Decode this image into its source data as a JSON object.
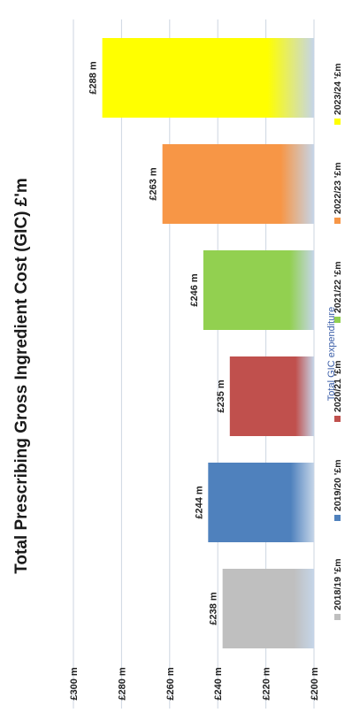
{
  "chart_data": {
    "type": "bar",
    "title": "Total Prescribing Gross Ingredient Cost (GIC) £'m",
    "xlabel": "Total GIC expenditure",
    "ylabel": "",
    "ylim": [
      200,
      300
    ],
    "y_ticks": [
      200,
      220,
      240,
      260,
      280,
      300
    ],
    "y_tick_labels": [
      "£200 m",
      "£220 m",
      "£240 m",
      "£260 m",
      "£280 m",
      "£300 m"
    ],
    "categories": [
      "2018/19 '£m",
      "2019/20 '£m",
      "2020/21 '£m",
      "2021/22 '£m",
      "2022/23 '£m",
      "2023/24 '£m"
    ],
    "values": [
      238,
      244,
      235,
      246,
      263,
      288
    ],
    "data_labels": [
      "£238 m",
      "£244 m",
      "£235 m",
      "£246 m",
      "£263 m",
      "£288 m"
    ],
    "colors": [
      "#bfbfbf",
      "#4f81bd",
      "#c0504d",
      "#92d050",
      "#f79646",
      "#ffff00"
    ],
    "legend": {
      "position": "bottom",
      "entries": [
        "2018/19 '£m",
        "2019/20 '£m",
        "2020/21 '£m",
        "2021/22 '£m",
        "2022/23 '£m",
        "2023/24 '£m"
      ]
    },
    "grid": true,
    "orientation": "rotated 90° counter-clockwise"
  }
}
